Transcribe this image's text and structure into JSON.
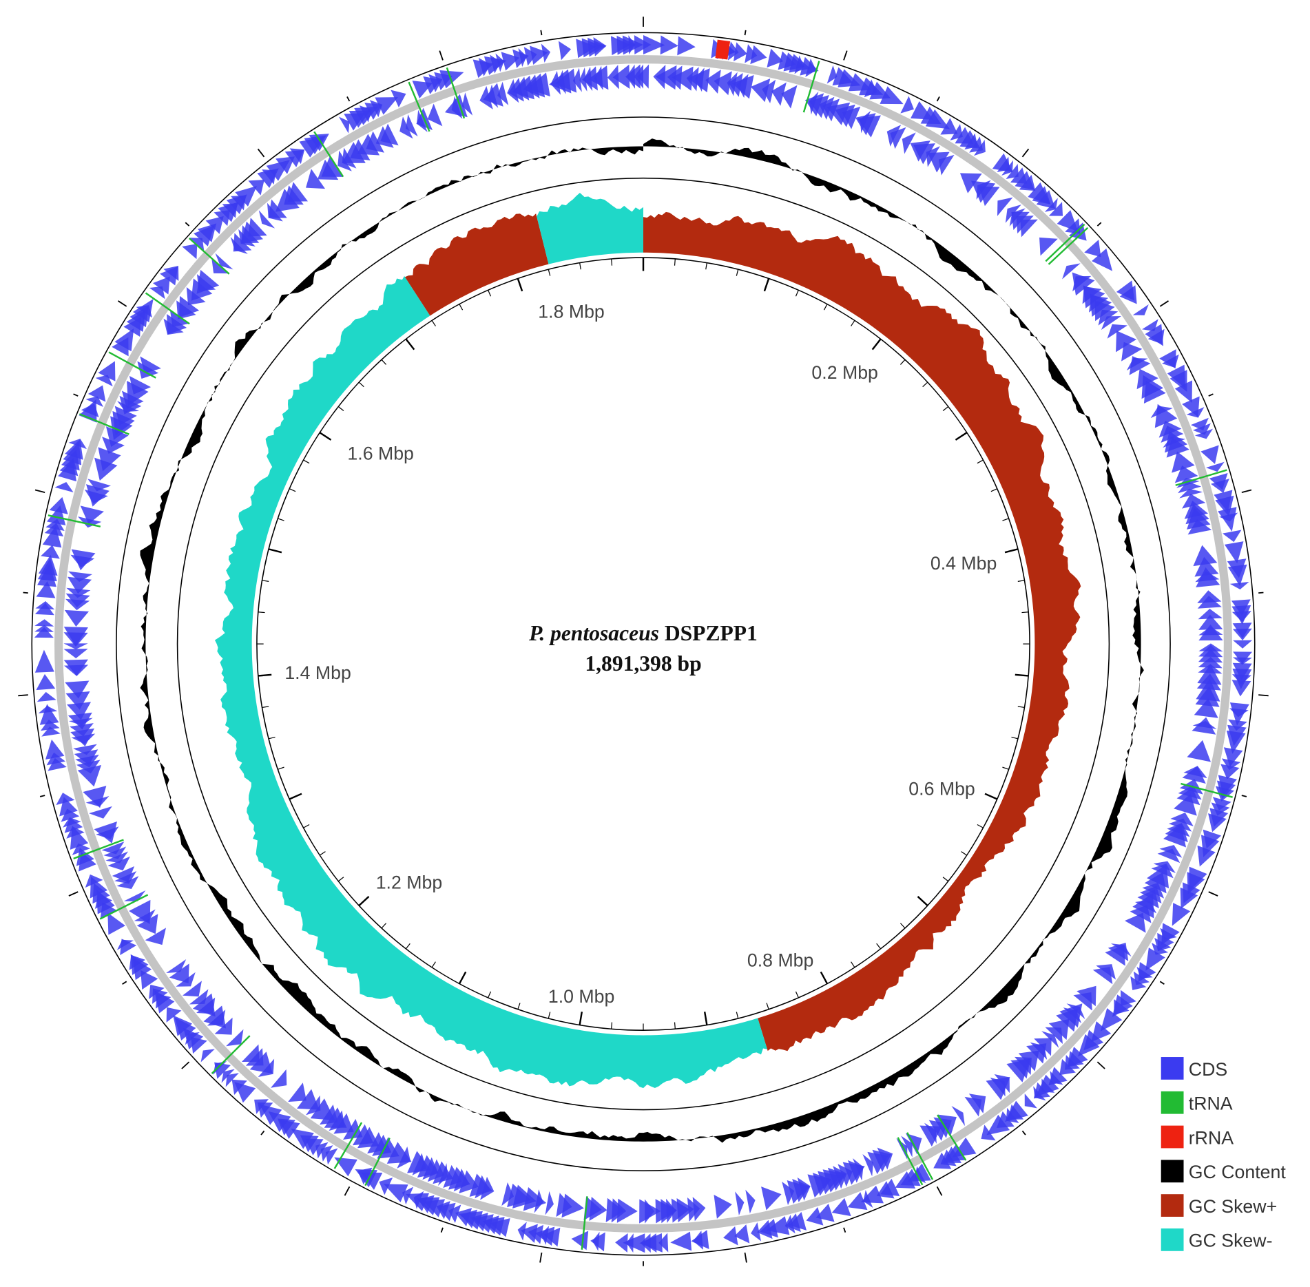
{
  "diagram": {
    "center": {
      "species": "P. pentosaceus",
      "strain": "DSPZPP1",
      "size": "1,891,398 bp"
    },
    "scale_labels": [
      "0.2 Mbp",
      "0.4 Mbp",
      "0.6 Mbp",
      "0.8 Mbp",
      "1.0 Mbp",
      "1.2 Mbp",
      "1.4 Mbp",
      "1.6 Mbp",
      "1.8 Mbp"
    ],
    "legend": [
      {
        "label": "CDS",
        "color": "#3b3bf0"
      },
      {
        "label": "tRNA",
        "color": "#22bb33"
      },
      {
        "label": "rRNA",
        "color": "#ee2211"
      },
      {
        "label": "GC Content",
        "color": "#000000"
      },
      {
        "label": "GC Skew+",
        "color": "#b32a0f"
      },
      {
        "label": "GC Skew-",
        "color": "#1fd8c8"
      }
    ]
  }
}
